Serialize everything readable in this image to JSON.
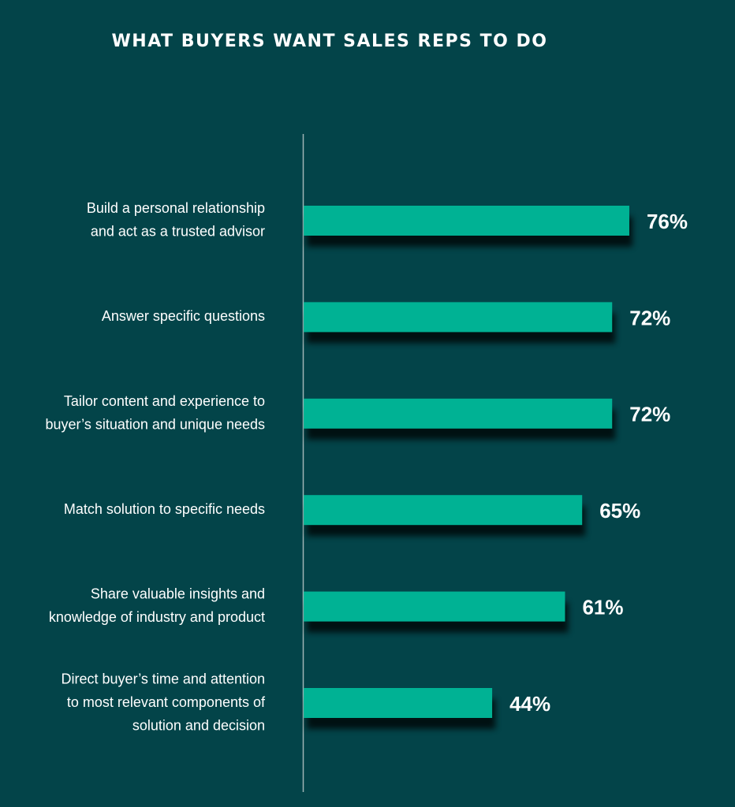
{
  "chart_data": {
    "type": "bar",
    "orientation": "horizontal",
    "title": "WHAT BUYERS WANT SALES REPS TO DO",
    "categories": [
      [
        "Build a personal relationship",
        "and act as a trusted advisor"
      ],
      [
        "Answer specific questions"
      ],
      [
        "Tailor content and experience to",
        "buyer’s situation and unique needs"
      ],
      [
        "Match solution to specific needs"
      ],
      [
        "Share valuable insights and",
        "knowledge of industry and product"
      ],
      [
        "Direct buyer’s time and attention",
        "to most relevant components of",
        "solution and decision"
      ]
    ],
    "values": [
      76,
      72,
      72,
      65,
      61,
      44
    ],
    "value_labels": [
      "76%",
      "72%",
      "72%",
      "65%",
      "61%",
      "44%"
    ],
    "color": "#00b294"
  }
}
